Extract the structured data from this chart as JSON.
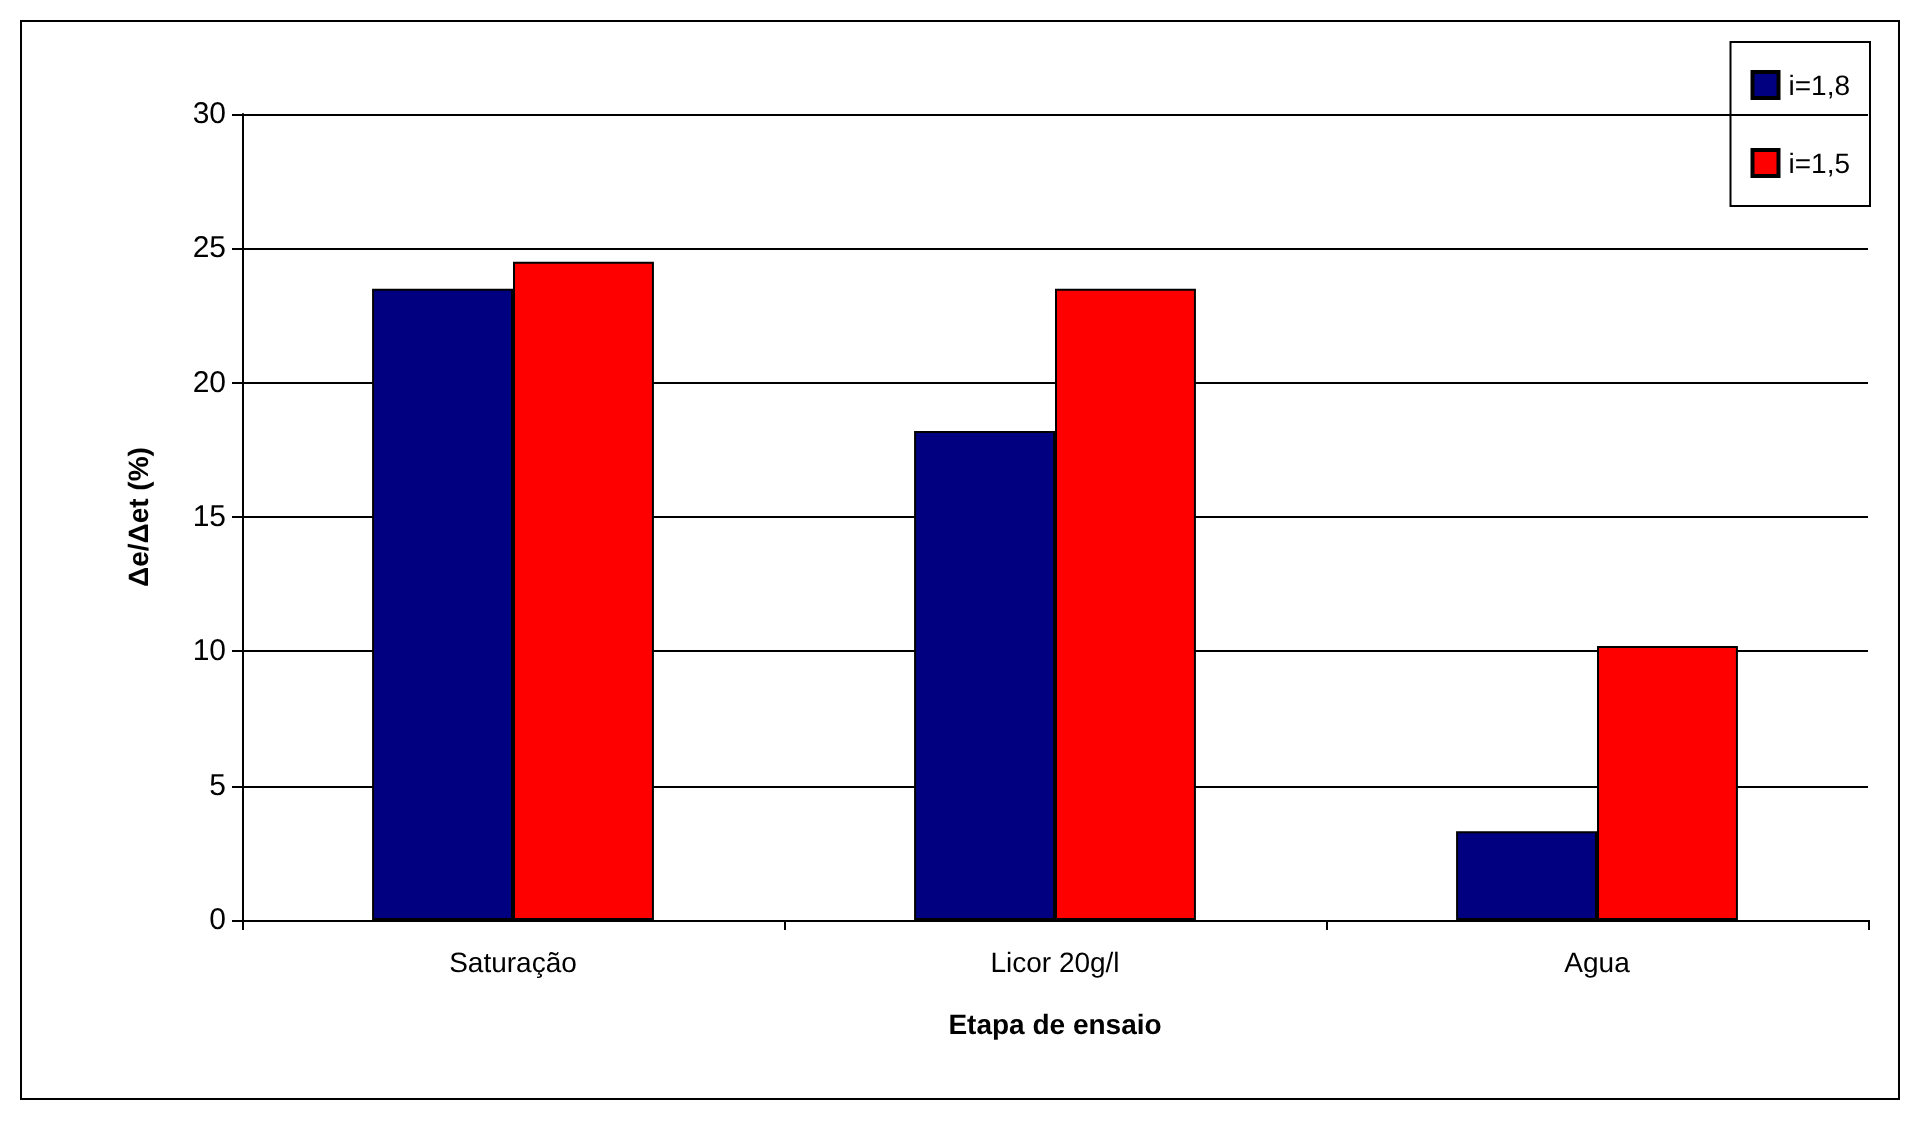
{
  "chart_data": {
    "type": "bar",
    "xlabel": "Etapa de ensaio",
    "ylabel": "Δe/Δet (%)",
    "categories": [
      "Saturação",
      "Licor 20g/l",
      "Agua"
    ],
    "series": [
      {
        "name": "i=1,8",
        "color": "#000080",
        "values": [
          23.5,
          18.2,
          3.3
        ]
      },
      {
        "name": "i=1,5",
        "color": "#ff0000",
        "values": [
          24.5,
          23.5,
          10.2
        ]
      }
    ],
    "ylim": [
      0,
      30
    ],
    "yticks": [
      0,
      5,
      10,
      15,
      20,
      25,
      30
    ],
    "grid": "y",
    "legend": "top right"
  }
}
